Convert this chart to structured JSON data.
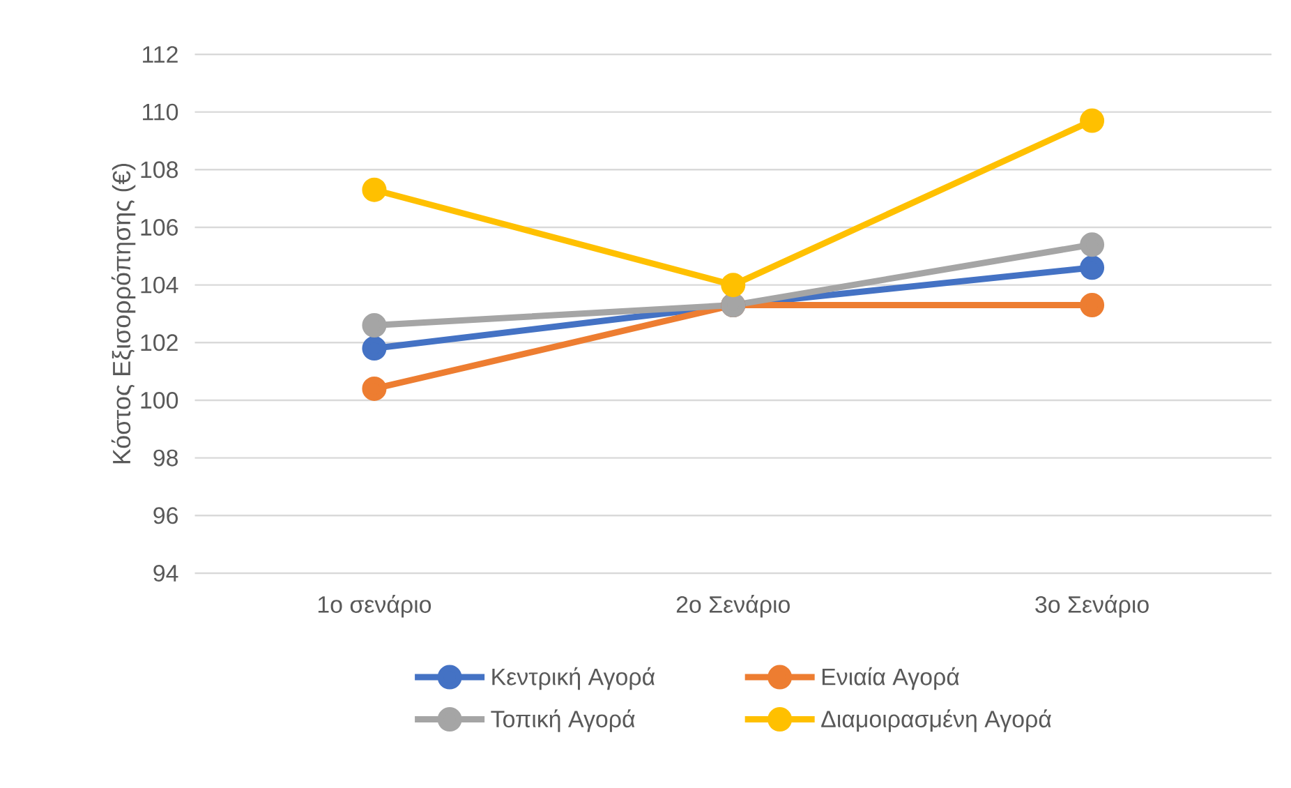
{
  "chart_data": {
    "type": "line",
    "ylabel": "Κόστος Εξισορρόπησης (€)",
    "categories": [
      "1ο σενάριο",
      "2ο Σενάριο",
      "3ο Σενάριο"
    ],
    "series": [
      {
        "name": "Κεντρική Αγορά",
        "color": "#4472c4",
        "values": [
          101.8,
          103.3,
          104.6
        ]
      },
      {
        "name": "Ενιαία Αγορά",
        "color": "#ed7d31",
        "values": [
          100.4,
          103.3,
          103.3
        ]
      },
      {
        "name": "Τοπική Αγορά",
        "color": "#a5a5a5",
        "values": [
          102.6,
          103.3,
          105.4
        ]
      },
      {
        "name": "Διαμοιρασμένη Αγορά",
        "color": "#ffc000",
        "values": [
          107.3,
          104.0,
          109.7
        ]
      }
    ],
    "ylim": [
      94,
      112
    ],
    "yticks": [
      94,
      96,
      98,
      100,
      102,
      104,
      106,
      108,
      110,
      112
    ],
    "grid": "y",
    "legend": "bottom",
    "marker": "circle",
    "line_style": "solid"
  }
}
